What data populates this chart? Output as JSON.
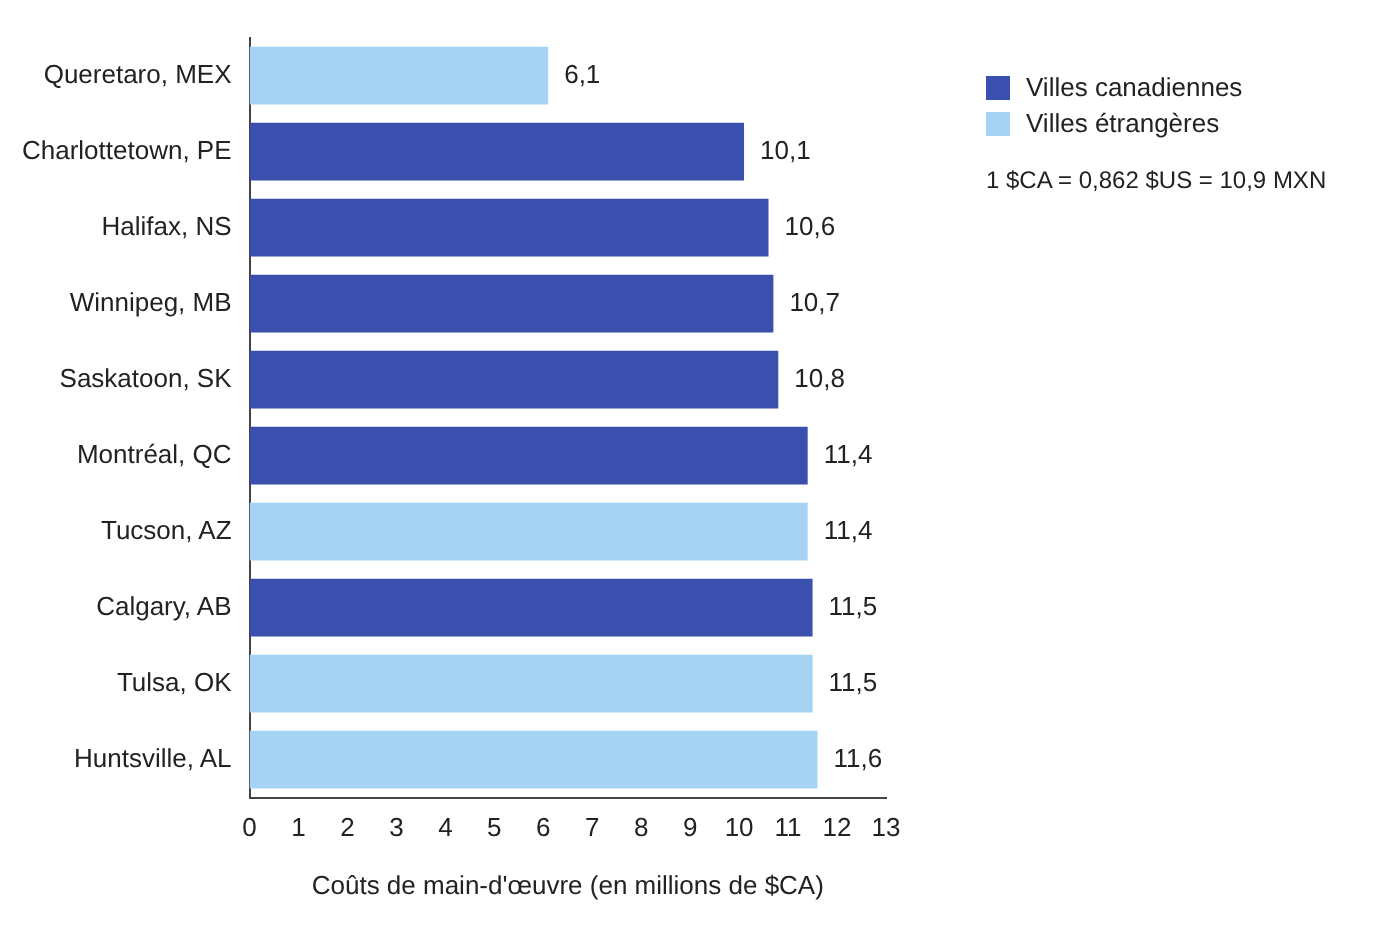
{
  "chart_data": {
    "type": "bar",
    "orientation": "horizontal",
    "stacked": true,
    "xlabel": "Coûts de main-d'œuvre (en millions de $CA)",
    "categories": [
      "Queretaro, MEX",
      "Charlottetown, PE",
      "Halifax, NS",
      "Winnipeg, MB",
      "Saskatoon, SK",
      "Montréal, QC",
      "Tucson, AZ",
      "Calgary, AB",
      "Tulsa, OK",
      "Huntsville, AL"
    ],
    "series": [
      {
        "name": "Villes canadiennes",
        "color": "#3a4fae",
        "values": [
          null,
          10.1,
          10.6,
          10.7,
          10.8,
          11.4,
          null,
          11.5,
          null,
          null
        ],
        "value_labels": [
          null,
          "10,1",
          "10,6",
          "10,7",
          "10,8",
          "11,4",
          null,
          "11,5",
          null,
          null
        ]
      },
      {
        "name": "Villes étrangères",
        "color": "#a5d3f3",
        "values": [
          6.1,
          null,
          null,
          null,
          null,
          null,
          11.4,
          null,
          11.5,
          11.6
        ],
        "value_labels": [
          "6,1",
          null,
          null,
          null,
          null,
          null,
          "11,4",
          null,
          "11,5",
          "11,6"
        ]
      }
    ],
    "xlim": [
      0,
      13
    ],
    "xticks": [
      0,
      1,
      2,
      3,
      4,
      5,
      6,
      7,
      8,
      9,
      10,
      11,
      12,
      13
    ],
    "grid": false,
    "legend": "top right",
    "annotations": [
      "1 $CA = 0,862 $US = 10,9 MXN"
    ]
  }
}
